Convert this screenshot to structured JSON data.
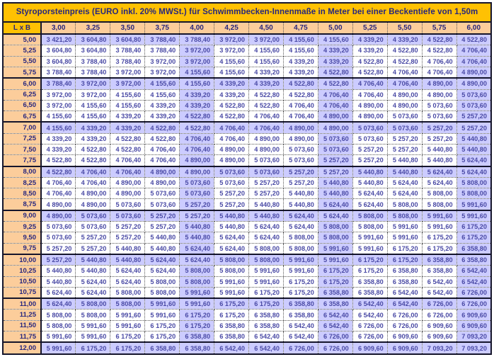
{
  "title": "Styroporsteinpreis (EURO inkl. 20% MWSt.) für Schwimmbecken-Innenmaße in Meter bei einer Beckentiefe von 1,50m",
  "corner_label": "L x B",
  "table": {
    "column_headers": [
      "3,00",
      "3,25",
      "3,50",
      "3,75",
      "4,00",
      "4,25",
      "4,50",
      "4,75",
      "5,00",
      "5,25",
      "5,50",
      "5,75",
      "6,00"
    ],
    "accent_column_indexes": [
      4,
      8,
      12
    ],
    "rows": [
      {
        "label": "5,00",
        "accent": true,
        "values": [
          "3 421,20",
          "3 604,80",
          "3 604,80",
          "3 788,40",
          "3 788,40",
          "3 972,00",
          "3 972,00",
          "4 155,60",
          "4 155,60",
          "4 339,20",
          "4 339,20",
          "4 522,80",
          "4 522,80"
        ]
      },
      {
        "label": "5,25",
        "accent": false,
        "values": [
          "3 604,80",
          "3 604,80",
          "3 788,40",
          "3 788,40",
          "3 972,00",
          "3 972,00",
          "4 155,60",
          "4 155,60",
          "4 339,20",
          "4 339,20",
          "4 522,80",
          "4 522,80",
          "4 706,40"
        ]
      },
      {
        "label": "5,50",
        "accent": false,
        "values": [
          "3 604,80",
          "3 788,40",
          "3 788,40",
          "3 972,00",
          "3 972,00",
          "4 155,60",
          "4 155,60",
          "4 339,20",
          "4 339,20",
          "4 522,80",
          "4 522,80",
          "4 706,40",
          "4 706,40"
        ]
      },
      {
        "label": "5,75",
        "accent": false,
        "values": [
          "3 788,40",
          "3 788,40",
          "3 972,00",
          "3 972,00",
          "4 155,60",
          "4 155,60",
          "4 339,20",
          "4 339,20",
          "4 522,80",
          "4 522,80",
          "4 706,40",
          "4 706,40",
          "4 890,00"
        ]
      },
      {
        "label": "6,00",
        "accent": true,
        "values": [
          "3 788,40",
          "3 972,00",
          "3 972,00",
          "4 155,60",
          "4 155,60",
          "4 339,20",
          "4 339,20",
          "4 522,80",
          "4 522,80",
          "4 706,40",
          "4 706,40",
          "4 890,00",
          "4 890,00"
        ]
      },
      {
        "label": "6,25",
        "accent": false,
        "values": [
          "3 972,00",
          "3 972,00",
          "4 155,60",
          "4 155,60",
          "4 339,20",
          "4 339,20",
          "4 522,80",
          "4 522,80",
          "4 706,40",
          "4 706,40",
          "4 890,00",
          "4 890,00",
          "5 073,60"
        ]
      },
      {
        "label": "6,50",
        "accent": false,
        "values": [
          "3 972,00",
          "4 155,60",
          "4 155,60",
          "4 339,20",
          "4 339,20",
          "4 522,80",
          "4 522,80",
          "4 706,40",
          "4 706,40",
          "4 890,00",
          "4 890,00",
          "5 073,60",
          "5 073,60"
        ]
      },
      {
        "label": "6,75",
        "accent": false,
        "values": [
          "4 155,60",
          "4 155,60",
          "4 339,20",
          "4 339,20",
          "4 522,80",
          "4 522,80",
          "4 706,40",
          "4 706,40",
          "4 890,00",
          "4 890,00",
          "5 073,60",
          "5 073,60",
          "5 257,20"
        ]
      },
      {
        "label": "7,00",
        "accent": true,
        "values": [
          "4 155,60",
          "4 339,20",
          "4 339,20",
          "4 522,80",
          "4 522,80",
          "4 706,40",
          "4 706,40",
          "4 890,00",
          "4 890,00",
          "5 073,60",
          "5 073,60",
          "5 257,20",
          "5 257,20"
        ]
      },
      {
        "label": "7,25",
        "accent": false,
        "values": [
          "4 339,20",
          "4 339,20",
          "4 522,80",
          "4 522,80",
          "4 706,40",
          "4 706,40",
          "4 890,00",
          "4 890,00",
          "5 073,60",
          "5 073,60",
          "5 257,20",
          "5 257,20",
          "5 440,80"
        ]
      },
      {
        "label": "7,50",
        "accent": false,
        "values": [
          "4 339,20",
          "4 522,80",
          "4 522,80",
          "4 706,40",
          "4 706,40",
          "4 890,00",
          "4 890,00",
          "5 073,60",
          "5 073,60",
          "5 257,20",
          "5 257,20",
          "5 440,80",
          "5 440,80"
        ]
      },
      {
        "label": "7,75",
        "accent": false,
        "values": [
          "4 522,80",
          "4 522,80",
          "4 706,40",
          "4 706,40",
          "4 890,00",
          "4 890,00",
          "5 073,60",
          "5 073,60",
          "5 257,20",
          "5 257,20",
          "5 440,80",
          "5 440,80",
          "5 624,40"
        ]
      },
      {
        "label": "8,00",
        "accent": true,
        "values": [
          "4 522,80",
          "4 706,40",
          "4 706,40",
          "4 890,00",
          "4 890,00",
          "5 073,60",
          "5 073,60",
          "5 257,20",
          "5 257,20",
          "5 440,80",
          "5 440,80",
          "5 624,40",
          "5 624,40"
        ]
      },
      {
        "label": "8,25",
        "accent": false,
        "values": [
          "4 706,40",
          "4 706,40",
          "4 890,00",
          "4 890,00",
          "5 073,60",
          "5 073,60",
          "5 257,20",
          "5 257,20",
          "5 440,80",
          "5 440,80",
          "5 624,40",
          "5 624,40",
          "5 808,00"
        ]
      },
      {
        "label": "8,50",
        "accent": false,
        "values": [
          "4 706,40",
          "4 890,00",
          "4 890,00",
          "5 073,60",
          "5 073,60",
          "5 257,20",
          "5 257,20",
          "5 440,80",
          "5 440,80",
          "5 624,40",
          "5 624,40",
          "5 808,00",
          "5 808,00"
        ]
      },
      {
        "label": "8,75",
        "accent": false,
        "values": [
          "4 890,00",
          "4 890,00",
          "5 073,60",
          "5 073,60",
          "5 257,20",
          "5 257,20",
          "5 440,80",
          "5 440,80",
          "5 624,40",
          "5 624,40",
          "5 808,00",
          "5 808,00",
          "5 991,60"
        ]
      },
      {
        "label": "9,00",
        "accent": true,
        "values": [
          "4 890,00",
          "5 073,60",
          "5 073,60",
          "5 257,20",
          "5 257,20",
          "5 440,80",
          "5 440,80",
          "5 624,40",
          "5 624,40",
          "5 808,00",
          "5 808,00",
          "5 991,60",
          "5 991,60"
        ]
      },
      {
        "label": "9,25",
        "accent": false,
        "values": [
          "5 073,60",
          "5 073,60",
          "5 257,20",
          "5 257,20",
          "5 440,80",
          "5 440,80",
          "5 624,40",
          "5 624,40",
          "5 808,00",
          "5 808,00",
          "5 991,60",
          "5 991,60",
          "6 175,20"
        ]
      },
      {
        "label": "9,50",
        "accent": false,
        "values": [
          "5 073,60",
          "5 257,20",
          "5 257,20",
          "5 440,80",
          "5 440,80",
          "5 624,40",
          "5 624,40",
          "5 808,00",
          "5 808,00",
          "5 991,60",
          "5 991,60",
          "6 175,20",
          "6 175,20"
        ]
      },
      {
        "label": "9,75",
        "accent": false,
        "values": [
          "5 257,20",
          "5 257,20",
          "5 440,80",
          "5 440,80",
          "5 624,40",
          "5 624,40",
          "5 808,00",
          "5 808,00",
          "5 991,60",
          "5 991,60",
          "6 175,20",
          "6 175,20",
          "6 358,80"
        ]
      },
      {
        "label": "10,00",
        "accent": true,
        "values": [
          "5 257,20",
          "5 440,80",
          "5 440,80",
          "5 624,40",
          "5 624,40",
          "5 808,00",
          "5 808,00",
          "5 991,60",
          "5 991,60",
          "6 175,20",
          "6 175,20",
          "6 358,80",
          "6 358,80"
        ]
      },
      {
        "label": "10,25",
        "accent": false,
        "values": [
          "5 440,80",
          "5 440,80",
          "5 624,40",
          "5 624,40",
          "5 808,00",
          "5 808,00",
          "5 991,60",
          "5 991,60",
          "6 175,20",
          "6 175,20",
          "6 358,80",
          "6 358,80",
          "6 542,40"
        ]
      },
      {
        "label": "10,50",
        "accent": false,
        "values": [
          "5 440,80",
          "5 624,40",
          "5 624,40",
          "5 808,00",
          "5 808,00",
          "5 991,60",
          "5 991,60",
          "6 175,20",
          "6 175,20",
          "6 358,80",
          "6 358,80",
          "6 542,40",
          "6 542,40"
        ]
      },
      {
        "label": "10,75",
        "accent": false,
        "values": [
          "5 624,40",
          "5 624,40",
          "5 808,00",
          "5 808,00",
          "5 991,60",
          "5 991,60",
          "6 175,20",
          "6 175,20",
          "6 358,80",
          "6 358,80",
          "6 542,40",
          "6 542,40",
          "6 726,00"
        ]
      },
      {
        "label": "11,00",
        "accent": true,
        "values": [
          "5 624,40",
          "5 808,00",
          "5 808,00",
          "5 991,60",
          "5 991,60",
          "6 175,20",
          "6 175,20",
          "6 358,80",
          "6 358,80",
          "6 542,40",
          "6 542,40",
          "6 726,00",
          "6 726,00"
        ]
      },
      {
        "label": "11,25",
        "accent": false,
        "values": [
          "5 808,00",
          "5 808,00",
          "5 991,60",
          "5 991,60",
          "6 175,20",
          "6 175,20",
          "6 358,80",
          "6 358,80",
          "6 542,40",
          "6 542,40",
          "6 726,00",
          "6 726,00",
          "6 909,60"
        ]
      },
      {
        "label": "11,50",
        "accent": false,
        "values": [
          "5 808,00",
          "5 991,60",
          "5 991,60",
          "6 175,20",
          "6 175,20",
          "6 358,80",
          "6 358,80",
          "6 542,40",
          "6 542,40",
          "6 726,00",
          "6 726,00",
          "6 909,60",
          "6 909,60"
        ]
      },
      {
        "label": "11,75",
        "accent": false,
        "values": [
          "5 991,60",
          "5 991,60",
          "6 175,20",
          "6 175,20",
          "6 358,80",
          "6 358,80",
          "6 542,40",
          "6 542,40",
          "6 726,00",
          "6 726,00",
          "6 909,60",
          "6 909,60",
          "7 093,20"
        ]
      },
      {
        "label": "12,00",
        "accent": true,
        "values": [
          "5 991,60",
          "6 175,20",
          "6 175,20",
          "6 358,80",
          "6 358,80",
          "6 542,40",
          "6 542,40",
          "6 726,00",
          "6 726,00",
          "6 909,60",
          "6 909,60",
          "7 093,20",
          "7 093,20"
        ]
      }
    ]
  },
  "colors": {
    "title_background": "#FFC103",
    "header_background": "#FCCD9B",
    "accent_cell_background": "#CCCCFF",
    "cell_background": "#FFFFFF",
    "text": "#26267E",
    "value_text": "#4A4AA5",
    "grid_major": "#15152B",
    "grid_dotted": "#555555"
  }
}
